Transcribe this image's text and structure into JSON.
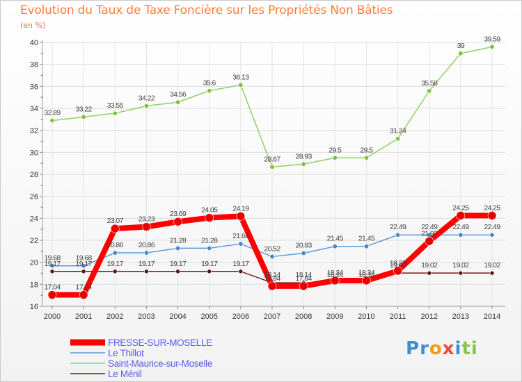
{
  "title": "Evolution du Taux de Taxe Foncière sur les Propriétés Non Bâties",
  "unit_label": "(en %)",
  "logo": {
    "letters": [
      "P",
      "r",
      "o",
      "x",
      "i",
      "t",
      "i"
    ],
    "colors": [
      "#3a8fd1",
      "#3a8fd1",
      "#f39c12",
      "#e74c3c",
      "#3a8fd1",
      "#8bc34a",
      "#8bc34a"
    ]
  },
  "chart_data": {
    "type": "line",
    "categories": [
      "2000",
      "2001",
      "2002",
      "2003",
      "2004",
      "2005",
      "2006",
      "2007",
      "2008",
      "2009",
      "2010",
      "2011",
      "2012",
      "2013",
      "2014"
    ],
    "ylim": [
      16,
      40
    ],
    "yticks": [
      16,
      18,
      20,
      22,
      24,
      26,
      28,
      30,
      32,
      34,
      36,
      38,
      40
    ],
    "grid": true,
    "legend_position": "bottom-left",
    "series": [
      {
        "name": "Saint-Maurice-sur-Moselle",
        "color": "#8fd16a",
        "marker": "#7cc33c",
        "width": 1.5,
        "markerR": 3.2,
        "values": [
          32.89,
          33.22,
          33.55,
          34.22,
          34.56,
          35.6,
          36.13,
          28.67,
          28.93,
          29.5,
          29.5,
          31.24,
          35.58,
          39,
          39.59
        ],
        "labels": [
          "32.89",
          "33.22",
          "33.55",
          "34.22",
          "34.56",
          "35.6",
          "36.13",
          "28.67",
          "28.93",
          "29.5",
          "29.5",
          "31.24",
          "35.58",
          "39",
          "39.59"
        ]
      },
      {
        "name": "Le Thillot",
        "color": "#5b9bd5",
        "marker": "#4a86c8",
        "width": 1.5,
        "markerR": 3.2,
        "values": [
          19.68,
          19.68,
          20.86,
          20.86,
          21.28,
          21.28,
          21.68,
          20.52,
          20.83,
          21.45,
          21.45,
          22.49,
          22.49,
          22.49,
          22.49
        ],
        "labels": [
          "19.68",
          "19.68",
          "20.86",
          "20.86",
          "21.28",
          "21.28",
          "21.68",
          "20.52",
          "20.83",
          "21.45",
          "21.45",
          "22.49",
          "22.49",
          "22.49",
          "22.49"
        ]
      },
      {
        "name": "Le Ménil",
        "color": "#6b1f1f",
        "marker": "#5a1414",
        "width": 1.5,
        "markerR": 3,
        "values": [
          19.17,
          19.17,
          19.17,
          19.17,
          19.17,
          19.17,
          19.17,
          18.14,
          18.14,
          18.14,
          18.14,
          19.02,
          19.02,
          19.02,
          19.02
        ],
        "labels": [
          "19.17",
          "19.17",
          "19.17",
          "19.17",
          "19.17",
          "19.17",
          "19.17",
          "18.14",
          "18.14",
          "18.14",
          "18.14",
          "19.02",
          "19.02",
          "19.02",
          "19.02"
        ]
      },
      {
        "name": "FRESSE-SUR-MOSELLE",
        "color": "#ff0000",
        "marker": "#e60000",
        "width": 8,
        "markerR": 6,
        "values": [
          17.04,
          17.04,
          23.07,
          23.23,
          23.69,
          24.05,
          24.19,
          17.84,
          17.84,
          18.34,
          18.34,
          19.22,
          21.92,
          24.25,
          24.25
        ],
        "labels": [
          "17.04",
          "17.04",
          "23.07",
          "23.23",
          "23.69",
          "24.05",
          "24.19",
          "17.84",
          "17.84",
          "18.34",
          "18.34",
          "19.22",
          "21.92",
          "24.25",
          "24.25"
        ]
      }
    ]
  }
}
